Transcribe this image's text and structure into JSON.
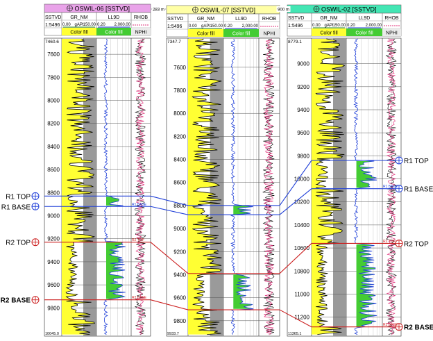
{
  "wells": [
    {
      "title": "OSWIL-06 [SSTVD]",
      "header_color": "#e9a3e9",
      "depth_col": {
        "label": "SSTVD",
        "value": "1:5496"
      },
      "gr": {
        "label": "GR_NM",
        "min": "0.00",
        "unit": "gAPI",
        "max": "150.00",
        "fill": "Color fill"
      },
      "lld": {
        "label": "LL9D",
        "min": "0.20",
        "max": "2,000.00",
        "fill": "Color fill"
      },
      "rhob": {
        "label": "RHOB",
        "sub": "NPHI"
      },
      "depth_top": "7460.6",
      "depth_bottom": "10045.0",
      "ticks": [
        7600,
        7800,
        8000,
        8200,
        8400,
        8600,
        8800,
        9000,
        9200,
        9400,
        9600,
        9800
      ]
    },
    {
      "title": "OSWIL-07 [SSTVD]",
      "header_color": "#ffffa6",
      "depth_col": {
        "label": "SSTVD",
        "value": "1:5496"
      },
      "gr": {
        "label": "GR_NM",
        "min": "0.00",
        "unit": "gAPI",
        "max": "150.00",
        "fill": "Color fill"
      },
      "lld": {
        "label": "LL9D",
        "min": "0.20",
        "max": "2,000.00",
        "fill": "Color fill"
      },
      "rhob": {
        "label": "RHOB",
        "sub": "NPHI"
      },
      "depth_top": "7347.7",
      "depth_bottom": "9933.7",
      "ticks": [
        7600,
        7800,
        8000,
        8200,
        8400,
        8600,
        8800,
        9000,
        9200,
        9400,
        9600,
        9800
      ]
    },
    {
      "title": "OSWIL-02 [SSTVD]",
      "header_color": "#43e6b4",
      "depth_col": {
        "label": "SSTVD",
        "value": "1:5496"
      },
      "gr": {
        "label": "GR_NM",
        "min": "0.00",
        "unit": "gAPI",
        "max": "150.00",
        "fill": "Color fill"
      },
      "lld": {
        "label": "LL9D",
        "min": "0.20",
        "max": "2,000.00",
        "fill": "Color fill"
      },
      "rhob": {
        "label": "RHOB",
        "sub": "NPHI"
      },
      "depth_top": "8779.1",
      "depth_bottom": "11365.1",
      "ticks": [
        9000,
        9200,
        9400,
        9600,
        9800,
        10000,
        10200,
        10400,
        10600,
        10800,
        11000,
        11200
      ]
    }
  ],
  "spacings": [
    "283 m",
    "900 m"
  ],
  "markers": {
    "R1 TOP": [
      8830,
      8800,
      9840
    ],
    "R1 BASE": [
      8920,
      8880,
      10085
    ],
    "R2 TOP": [
      9230,
      9390,
      10560
    ],
    "R2 BASE": [
      9730,
      9705,
      11285
    ]
  },
  "marker_labels": {
    "left": [
      "R1 TOP",
      "R1 BASE",
      "R2 TOP",
      "R2 BASE"
    ],
    "right": [
      "R1 TOP",
      "R1 BASE",
      "R2 TOP",
      "R2 BASE"
    ]
  },
  "marker_colors": {
    "R1": "#1f3fd8",
    "R2": "#cc1f1f"
  },
  "marker_track_labels": [
    "R1 BASE",
    "R2 TOP",
    "R2 BASE",
    "R1 BASE",
    "R2 TOP",
    "R2 BASE"
  ]
}
